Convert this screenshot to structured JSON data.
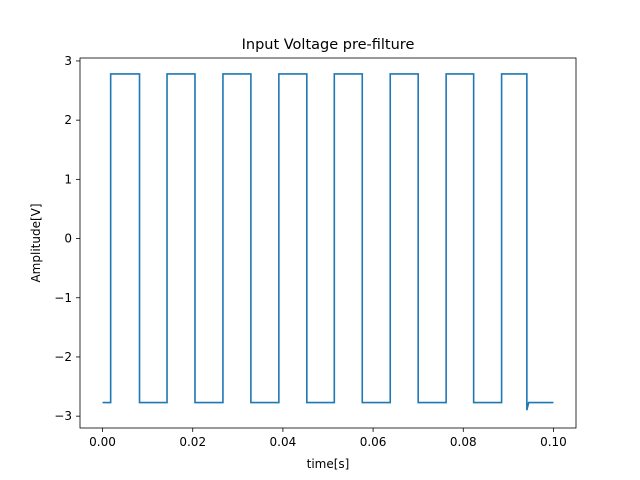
{
  "chart_data": {
    "type": "line",
    "title": "Input Voltage pre-filture",
    "xlabel": "time[s]",
    "ylabel": "Amplitude[V]",
    "xlim": [
      -0.005,
      0.105
    ],
    "ylim": [
      -3.2,
      3.05
    ],
    "grid": false,
    "xticks": [
      0.0,
      0.02,
      0.04,
      0.06,
      0.08,
      0.1
    ],
    "xtick_labels": [
      "0.00",
      "0.02",
      "0.04",
      "0.06",
      "0.08",
      "0.10"
    ],
    "yticks": [
      -3,
      -2,
      -1,
      0,
      1,
      2,
      3
    ],
    "ytick_labels": [
      "−3",
      "−2",
      "−1",
      "0",
      "1",
      "2",
      "3"
    ],
    "series": [
      {
        "color": "#1f77b4",
        "x": [
          0.0,
          0.0018,
          0.0018,
          0.0082,
          0.0082,
          0.0143,
          0.0143,
          0.0205,
          0.0205,
          0.0267,
          0.0267,
          0.0329,
          0.0329,
          0.0391,
          0.0391,
          0.0453,
          0.0453,
          0.0514,
          0.0514,
          0.0576,
          0.0576,
          0.0638,
          0.0638,
          0.07,
          0.07,
          0.0762,
          0.0762,
          0.0823,
          0.0823,
          0.0885,
          0.0885,
          0.0941,
          0.0941,
          0.0945,
          0.1
        ],
        "y": [
          -2.77,
          -2.77,
          2.78,
          2.78,
          -2.77,
          -2.77,
          2.78,
          2.78,
          -2.77,
          -2.77,
          2.78,
          2.78,
          -2.77,
          -2.77,
          2.78,
          2.78,
          -2.77,
          -2.77,
          2.78,
          2.78,
          -2.77,
          -2.77,
          2.78,
          2.78,
          -2.77,
          -2.77,
          2.78,
          2.78,
          -2.77,
          -2.77,
          2.78,
          2.78,
          -2.9,
          -2.77,
          -2.77
        ]
      }
    ]
  }
}
